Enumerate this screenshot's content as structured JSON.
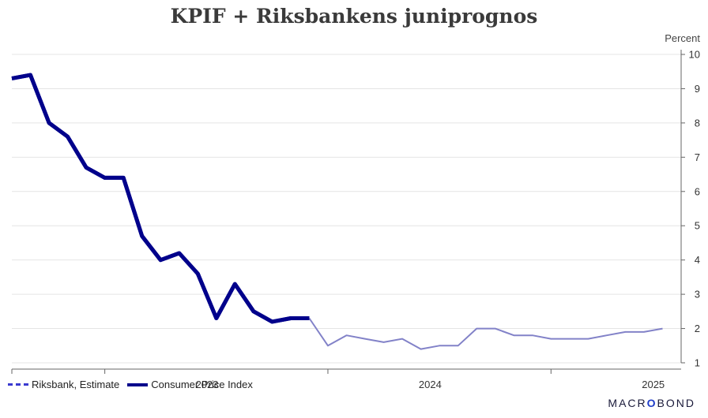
{
  "title": "KPIF + Riksbankens juniprognos",
  "unit_label": "Percent",
  "legend": {
    "estimate_label": "Riksbank, Estimate",
    "cpi_label": "Consumer Price Index"
  },
  "brand": {
    "pre": "MACR",
    "mid": "O",
    "post": "BOND"
  },
  "colors": {
    "cpi": "#00008b",
    "estimate": "#8282c8",
    "grid": "#e4e4e4",
    "axis": "#666666"
  },
  "chart_data": {
    "type": "line",
    "title": "KPIF + Riksbankens juniprognos",
    "ylabel": "Percent",
    "ylim": [
      1,
      10
    ],
    "yticks": [
      1,
      2,
      3,
      4,
      5,
      6,
      7,
      8,
      9,
      10
    ],
    "x_labels": [
      "2023",
      "2024",
      "2025"
    ],
    "xlim": [
      "2022-08",
      "2025-08"
    ],
    "grid": true,
    "legend_position": "bottom-left",
    "series": [
      {
        "name": "Consumer Price Index",
        "style": "thick-solid",
        "x": [
          "2022-08",
          "2022-09",
          "2022-10",
          "2022-11",
          "2022-12",
          "2023-01",
          "2023-02",
          "2023-03",
          "2023-04",
          "2023-05",
          "2023-06",
          "2023-07",
          "2023-08",
          "2023-09",
          "2023-10",
          "2023-11",
          "2023-12"
        ],
        "values": [
          9.3,
          9.4,
          8.0,
          7.6,
          6.7,
          6.4,
          6.4,
          4.7,
          4.0,
          4.2,
          3.6,
          2.3,
          3.3,
          2.5,
          2.2,
          2.3,
          2.3
        ]
      },
      {
        "name": "Riksbank, Estimate",
        "style": "thin-solid",
        "x": [
          "2023-12",
          "2024-01",
          "2024-02",
          "2024-03",
          "2024-04",
          "2024-05",
          "2024-06",
          "2024-07",
          "2024-08",
          "2024-09",
          "2024-10",
          "2024-11",
          "2024-12",
          "2025-01",
          "2025-02",
          "2025-03",
          "2025-04",
          "2025-05",
          "2025-06",
          "2025-07"
        ],
        "values": [
          2.3,
          1.5,
          1.8,
          1.7,
          1.6,
          1.7,
          1.4,
          1.5,
          1.5,
          2.0,
          2.0,
          1.8,
          1.8,
          1.7,
          1.7,
          1.7,
          1.8,
          1.9,
          1.9,
          2.0
        ]
      }
    ]
  }
}
